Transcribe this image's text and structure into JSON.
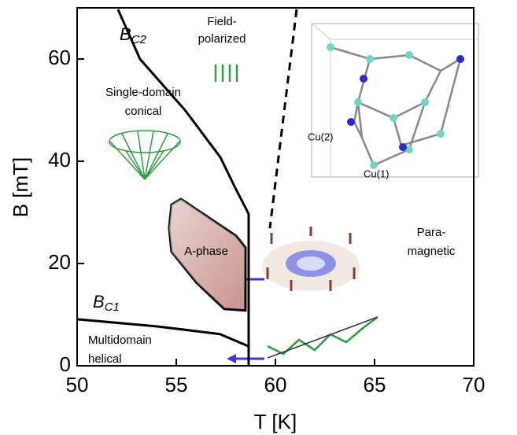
{
  "chart_data": {
    "type": "line",
    "xlabel": "T [K]",
    "ylabel": "B [mT]",
    "xlim": [
      50,
      70
    ],
    "ylim": [
      0,
      70
    ],
    "xticks": [
      50,
      55,
      60,
      65,
      70
    ],
    "yticks": [
      0,
      20,
      40,
      60
    ],
    "series": [
      {
        "color": "#000000",
        "dashed": false,
        "x": [
          52.06,
          53.17,
          55.44,
          57.22,
          58.0,
          58.65,
          58.65
        ],
        "y": [
          69.7,
          60,
          50,
          40.8,
          34.6,
          29.7,
          0
        ]
      },
      {
        "color": "#000000",
        "dashed": true,
        "x": [
          61.07,
          59.72
        ],
        "y": [
          69.7,
          26.9
        ]
      },
      {
        "color": "#000000",
        "dashed": false,
        "x": [
          50,
          54.05,
          57.2,
          58.65
        ],
        "y": [
          9.1,
          7.7,
          6.2,
          3.8
        ]
      }
    ],
    "regions": [
      {
        "color": "#c99490",
        "x": [
          54.76,
          55.24,
          58.02,
          58.49,
          58.49,
          57.42,
          56.03,
          54.76,
          54.64
        ],
        "y": [
          31.5,
          32.6,
          25.4,
          23.1,
          10.8,
          11.1,
          16.2,
          22.3,
          26.9
        ]
      }
    ],
    "annotations": {
      "field_polarized": [
        "Field-",
        "polarized"
      ],
      "single_domain": [
        "Single-domain",
        "conical"
      ],
      "a_phase": "A-phase",
      "paramagnetic": [
        "Para-",
        "magnetic"
      ],
      "multidomain": [
        "Multidomain",
        "helical"
      ],
      "bc2": {
        "main": "B",
        "sub": "C2"
      },
      "bc1": {
        "main": "B",
        "sub": "C1"
      },
      "cu2": "Cu(2)",
      "cu1": "Cu(1)"
    }
  }
}
